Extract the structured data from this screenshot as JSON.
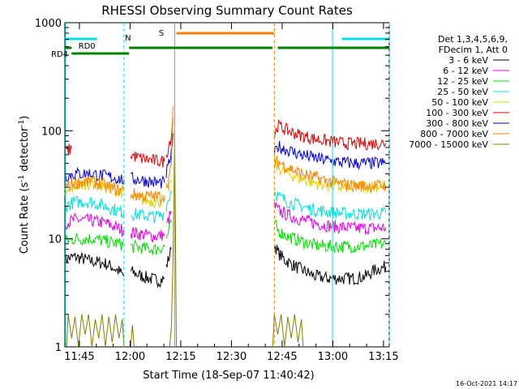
{
  "chart_data": {
    "type": "line",
    "title": "RHESSI Observing Summary Count Rates",
    "xlabel": "Start Time (18-Sep-07 11:40:42)",
    "ylabel_main": "Count Rate (s",
    "ylabel_sup1": "-1",
    "ylabel_mid": " detector",
    "ylabel_sup2": "-1",
    "ylabel_end": ")",
    "xlim_minutes": [
      0,
      96
    ],
    "ylim": [
      1,
      1000
    ],
    "yscale": "log",
    "x_ticks": [
      {
        "label": "11:45",
        "minute": 4.3
      },
      {
        "label": "12:00",
        "minute": 19.3
      },
      {
        "label": "12:15",
        "minute": 34.3
      },
      {
        "label": "12:30",
        "minute": 49.3
      },
      {
        "label": "12:45",
        "minute": 64.3
      },
      {
        "label": "13:00",
        "minute": 79.3
      },
      {
        "label": "13:15",
        "minute": 94.3
      }
    ],
    "y_ticks": [
      {
        "label": "1",
        "value": 1
      },
      {
        "label": "10",
        "value": 10
      },
      {
        "label": "100",
        "value": 100
      },
      {
        "label": "1000",
        "value": 1000
      }
    ],
    "legend_header": [
      "Det 1,3,4,5,6,9,",
      "FDecim 1, Att 0"
    ],
    "legend_position": "right",
    "footer_date": "16-Oct-2021 14:17",
    "series": [
      {
        "name": "3 - 6 keV",
        "color": "#000000",
        "segments": [
          [
            [
              0,
              6.5
            ],
            [
              3,
              6.8
            ],
            [
              8,
              6.2
            ],
            [
              12,
              5.9
            ],
            [
              14,
              5.5
            ],
            [
              16,
              5.0
            ],
            [
              17.5,
              4.5
            ]
          ],
          [
            [
              19.5,
              5.0
            ],
            [
              22,
              4.6
            ],
            [
              25,
              4.3
            ],
            [
              28,
              4.1
            ],
            [
              29.5,
              4.3
            ]
          ],
          [
            [
              30,
              5.5
            ],
            [
              31.5,
              8.0
            ]
          ],
          [
            [
              62,
              9.0
            ],
            [
              63,
              7.5
            ],
            [
              65,
              6.4
            ],
            [
              68,
              5.6
            ],
            [
              71,
              5.0
            ],
            [
              74,
              4.5
            ],
            [
              78,
              4.3
            ],
            [
              82,
              4.3
            ],
            [
              86,
              4.3
            ],
            [
              89,
              4.5
            ],
            [
              92,
              5.2
            ],
            [
              95,
              5.5
            ]
          ]
        ]
      },
      {
        "name": "6 - 12 keV",
        "color": "#e000e0",
        "segments": [
          [
            [
              0,
              14
            ],
            [
              3,
              15
            ],
            [
              7,
              14.8
            ],
            [
              12,
              14
            ],
            [
              16,
              12.5
            ],
            [
              17.5,
              12
            ]
          ],
          [
            [
              19.5,
              11.5
            ],
            [
              23,
              11
            ],
            [
              27,
              10.5
            ],
            [
              29.5,
              11
            ]
          ],
          [
            [
              30,
              13
            ],
            [
              31.5,
              18
            ]
          ],
          [
            [
              62,
              20
            ],
            [
              63,
              18.5
            ],
            [
              66,
              16.5
            ],
            [
              70,
              15
            ],
            [
              74,
              14
            ],
            [
              78,
              13.2
            ],
            [
              82,
              12.8
            ],
            [
              86,
              12.5
            ],
            [
              90,
              12.5
            ],
            [
              95,
              12.7
            ]
          ]
        ]
      },
      {
        "name": "12 - 25 keV",
        "color": "#00e000",
        "segments": [
          [
            [
              0,
              9.5
            ],
            [
              3,
              10
            ],
            [
              8,
              10
            ],
            [
              12,
              9.5
            ],
            [
              16,
              9
            ],
            [
              17.5,
              8.8
            ]
          ],
          [
            [
              19.5,
              8.5
            ],
            [
              23,
              8.2
            ],
            [
              27,
              8.0
            ],
            [
              29.5,
              8.5
            ]
          ],
          [
            [
              30,
              10
            ],
            [
              31.5,
              14
            ]
          ],
          [
            [
              62,
              14
            ],
            [
              63,
              12
            ],
            [
              66,
              10.5
            ],
            [
              70,
              9.5
            ],
            [
              74,
              8.7
            ],
            [
              78,
              8.5
            ],
            [
              82,
              8.5
            ],
            [
              86,
              8.5
            ],
            [
              90,
              8.6
            ],
            [
              95,
              9.0
            ]
          ]
        ]
      },
      {
        "name": "25 - 50 keV",
        "color": "#00e0e0",
        "segments": [
          [
            [
              0,
              20
            ],
            [
              3,
              22
            ],
            [
              8,
              22
            ],
            [
              12,
              20
            ],
            [
              16,
              18
            ],
            [
              17.5,
              17.5
            ]
          ],
          [
            [
              19.5,
              17
            ],
            [
              23,
              16.5
            ],
            [
              27,
              16
            ],
            [
              29.5,
              17
            ]
          ],
          [
            [
              30,
              20
            ],
            [
              31.5,
              28
            ]
          ],
          [
            [
              62,
              28
            ],
            [
              63,
              25
            ],
            [
              66,
              22
            ],
            [
              70,
              20
            ],
            [
              74,
              18.5
            ],
            [
              78,
              17.8
            ],
            [
              82,
              17.2
            ],
            [
              86,
              17
            ],
            [
              90,
              17
            ],
            [
              95,
              17.3
            ]
          ]
        ]
      },
      {
        "name": "50 - 100 keV",
        "color": "#e0d000",
        "segments": [
          [
            [
              0,
              25
            ],
            [
              3,
              31
            ],
            [
              8,
              33
            ],
            [
              12,
              30
            ],
            [
              16,
              28
            ],
            [
              17.5,
              27
            ]
          ],
          [
            [
              19.5,
              24
            ],
            [
              23,
              23
            ],
            [
              27,
              22
            ],
            [
              29.5,
              23
            ]
          ],
          [
            [
              30,
              26
            ],
            [
              31.5,
              35
            ]
          ],
          [
            [
              62,
              52
            ],
            [
              63,
              46
            ],
            [
              66,
              40
            ],
            [
              70,
              36
            ],
            [
              74,
              33
            ],
            [
              78,
              31
            ],
            [
              82,
              30
            ],
            [
              86,
              30
            ],
            [
              90,
              30.5
            ],
            [
              95,
              31
            ]
          ]
        ]
      },
      {
        "name": "100 - 300 keV",
        "color": "#e00000",
        "segments": [
          [
            [
              0,
              65
            ],
            [
              2,
              68
            ]
          ],
          [
            [
              19.5,
              60
            ],
            [
              22,
              56
            ],
            [
              26,
              53
            ],
            [
              29.5,
              52
            ]
          ],
          [
            [
              30,
              60
            ],
            [
              31.5,
              90
            ],
            [
              32,
              130
            ]
          ],
          [
            [
              62,
              90
            ],
            [
              63,
              112
            ],
            [
              66,
              100
            ],
            [
              70,
              90
            ],
            [
              74,
              84
            ],
            [
              78,
              80
            ],
            [
              82,
              77
            ],
            [
              86,
              76
            ],
            [
              90,
              76
            ],
            [
              95,
              77
            ]
          ]
        ]
      },
      {
        "name": "300 - 800 keV",
        "color": "#0000e0",
        "segments": [
          [
            [
              0,
              38
            ],
            [
              3,
              40
            ],
            [
              8,
              40
            ],
            [
              12,
              38
            ],
            [
              16,
              36
            ],
            [
              17.5,
              35
            ]
          ],
          [
            [
              19.5,
              36
            ],
            [
              23,
              35
            ],
            [
              27,
              33
            ],
            [
              29.5,
              33
            ]
          ],
          [
            [
              30,
              40
            ],
            [
              31.5,
              60
            ],
            [
              32,
              95
            ]
          ],
          [
            [
              62,
              60
            ],
            [
              63,
              72
            ],
            [
              66,
              66
            ],
            [
              70,
              60
            ],
            [
              74,
              56
            ],
            [
              78,
              53
            ],
            [
              82,
              51
            ],
            [
              86,
              50
            ],
            [
              90,
              50
            ],
            [
              95,
              50
            ]
          ]
        ]
      },
      {
        "name": "800 - 7000 keV",
        "color": "#ff8000",
        "segments": [
          [
            [
              0,
              30
            ],
            [
              3,
              33
            ],
            [
              8,
              34
            ],
            [
              12,
              31
            ],
            [
              16,
              28
            ],
            [
              17.5,
              28
            ]
          ],
          [
            [
              19.5,
              26
            ],
            [
              23,
              25
            ],
            [
              27,
              24.5
            ],
            [
              29.5,
              25
            ]
          ],
          [
            [
              30,
              30
            ],
            [
              31.5,
              45
            ],
            [
              32,
              170
            ]
          ],
          [
            [
              62,
              48
            ],
            [
              63,
              52
            ],
            [
              66,
              46
            ],
            [
              70,
              40
            ],
            [
              74,
              37
            ],
            [
              78,
              34
            ],
            [
              82,
              32
            ],
            [
              86,
              31
            ],
            [
              90,
              31
            ],
            [
              95,
              31
            ]
          ]
        ]
      },
      {
        "name": "7000 - 15000 keV",
        "color": "#808000",
        "segments": [
          [
            [
              0.5,
              1.0
            ],
            [
              1,
              2.0
            ],
            [
              2,
              1.2
            ],
            [
              3,
              1.9
            ],
            [
              4,
              1.0
            ],
            [
              5,
              2.0
            ],
            [
              6,
              1.3
            ],
            [
              7,
              2.0
            ],
            [
              8,
              1.0
            ],
            [
              9,
              1.8
            ],
            [
              10,
              1.2
            ],
            [
              11,
              2.0
            ],
            [
              12,
              1.0
            ],
            [
              13,
              1.9
            ],
            [
              14,
              1.1
            ],
            [
              15,
              2.0
            ],
            [
              16,
              1.2
            ],
            [
              17,
              1.8
            ],
            [
              17.5,
              1.0
            ]
          ],
          [
            [
              19.5,
              1.0
            ],
            [
              20,
              1.6
            ],
            [
              20.5,
              1.0
            ]
          ],
          [
            [
              31,
              1.0
            ],
            [
              31.5,
              1.5
            ],
            [
              32,
              6
            ],
            [
              32.5,
              100
            ],
            [
              33,
              1.0
            ]
          ],
          [
            [
              61.5,
              1.0
            ],
            [
              62,
              2.0
            ],
            [
              63,
              1.3
            ],
            [
              64,
              2.0
            ],
            [
              65,
              1.0
            ],
            [
              66,
              1.9
            ],
            [
              67,
              1.2
            ],
            [
              68,
              2.0
            ],
            [
              69,
              1.1
            ],
            [
              70,
              1.8
            ],
            [
              70.5,
              1.0
            ]
          ]
        ]
      }
    ],
    "flags": {
      "eclipse_markers_cyan": [
        0.2,
        17.5,
        79.2,
        96
      ],
      "saa_markers_orange": [
        32.5,
        62.0
      ],
      "rd0": {
        "label": "RD0",
        "segments": [
          [
            0,
            9.5
          ],
          [
            82,
            96
          ]
        ],
        "y": 740
      },
      "n_label": "N",
      "s": {
        "label": "S",
        "segments": [
          [
            33,
            62
          ]
        ],
        "y": 740
      },
      "green_top": {
        "segments": [
          [
            0,
            2
          ],
          [
            19,
            61.5
          ],
          [
            63,
            96
          ]
        ],
        "y": 560
      },
      "rd4": {
        "label": "RD4",
        "segments": [
          [
            2,
            19
          ]
        ],
        "y": 480
      }
    }
  }
}
